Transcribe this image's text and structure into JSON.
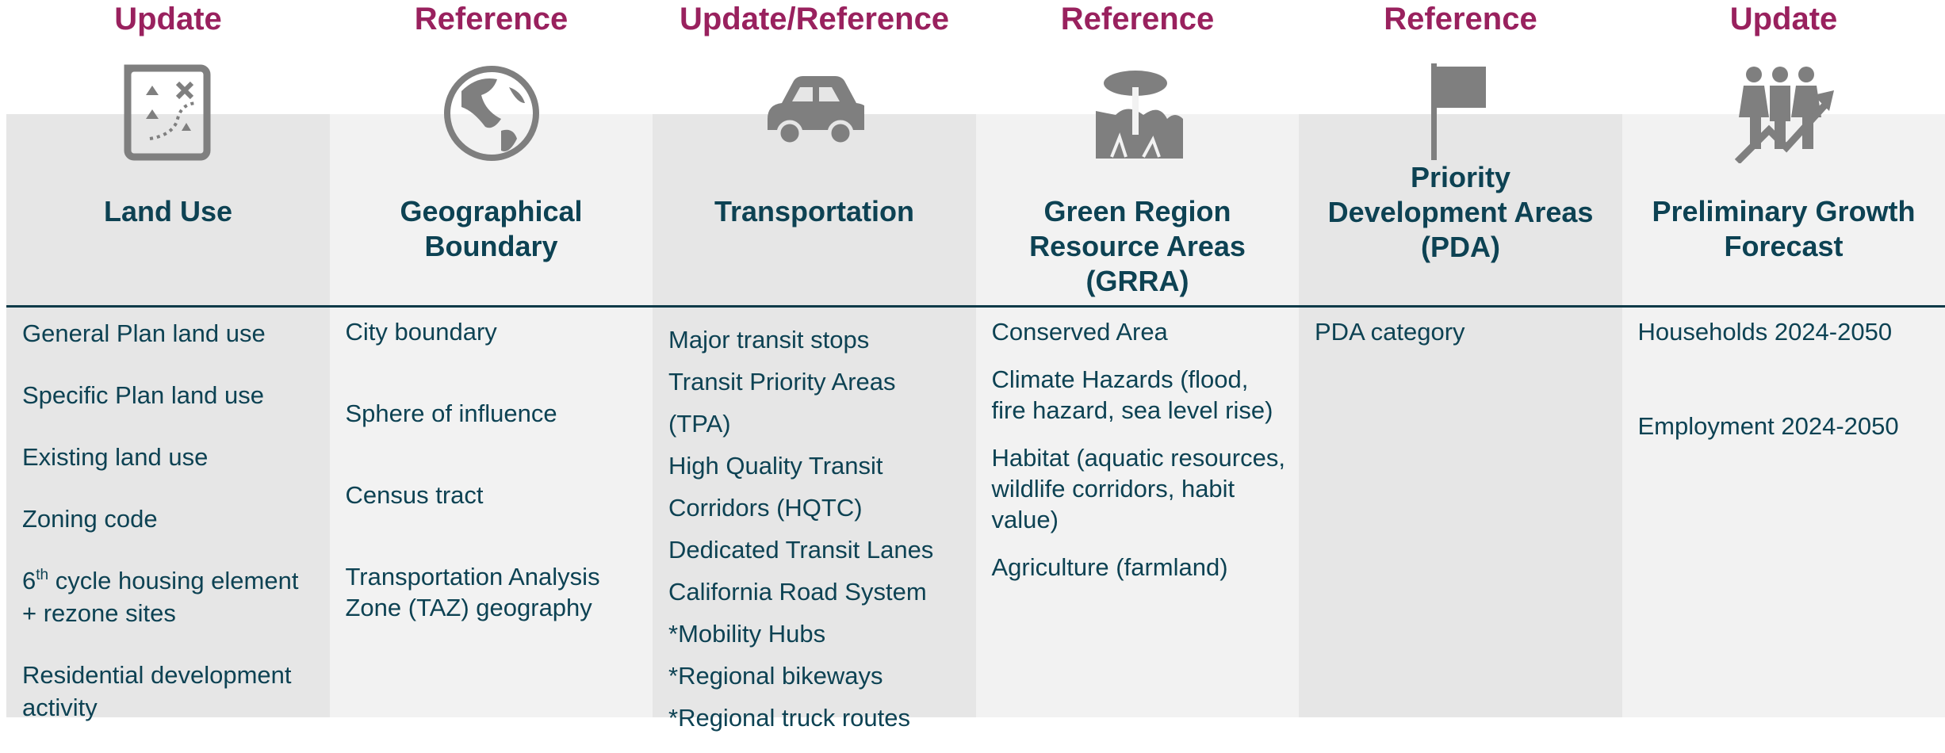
{
  "columns": [
    {
      "status": "Update",
      "title": [
        "Land Use"
      ],
      "items": [
        "General Plan land use",
        "Specific Plan land use",
        "Existing land use",
        "Zoning code",
        {
          "text": "6",
          "sup": "th",
          "rest": " cycle housing element + rezone sites"
        },
        "Residential development activity"
      ]
    },
    {
      "status": "Reference",
      "title": [
        "Geographical",
        "Boundary"
      ],
      "items": [
        "City boundary",
        "Sphere of influence",
        "Census tract",
        "Transportation Analysis Zone (TAZ) geography"
      ]
    },
    {
      "status": "Update/Reference",
      "title": [
        "Transportation"
      ],
      "items": [
        "Major transit stops",
        "Transit Priority Areas (TPA)",
        "High Quality Transit Corridors (HQTC)",
        "Dedicated Transit Lanes",
        "California Road System",
        "*Mobility Hubs",
        "*Regional bikeways",
        "*Regional truck routes"
      ]
    },
    {
      "status": "Reference",
      "title": [
        "Green Region",
        "Resource Areas",
        "(GRRA)"
      ],
      "items": [
        "Conserved Area",
        "Climate Hazards (flood, fire hazard, sea level rise)",
        "Habitat (aquatic resources, wildlife corridors, habit value)",
        "Agriculture (farmland)"
      ]
    },
    {
      "status": "Reference",
      "title": [
        "Priority",
        "Development Areas",
        "(PDA)"
      ],
      "items": [
        "PDA category"
      ]
    },
    {
      "status": "Update",
      "title": [
        "Preliminary Growth",
        "Forecast"
      ],
      "items": [
        "Households 2024-2050",
        "Employment 2024-2050"
      ]
    }
  ]
}
